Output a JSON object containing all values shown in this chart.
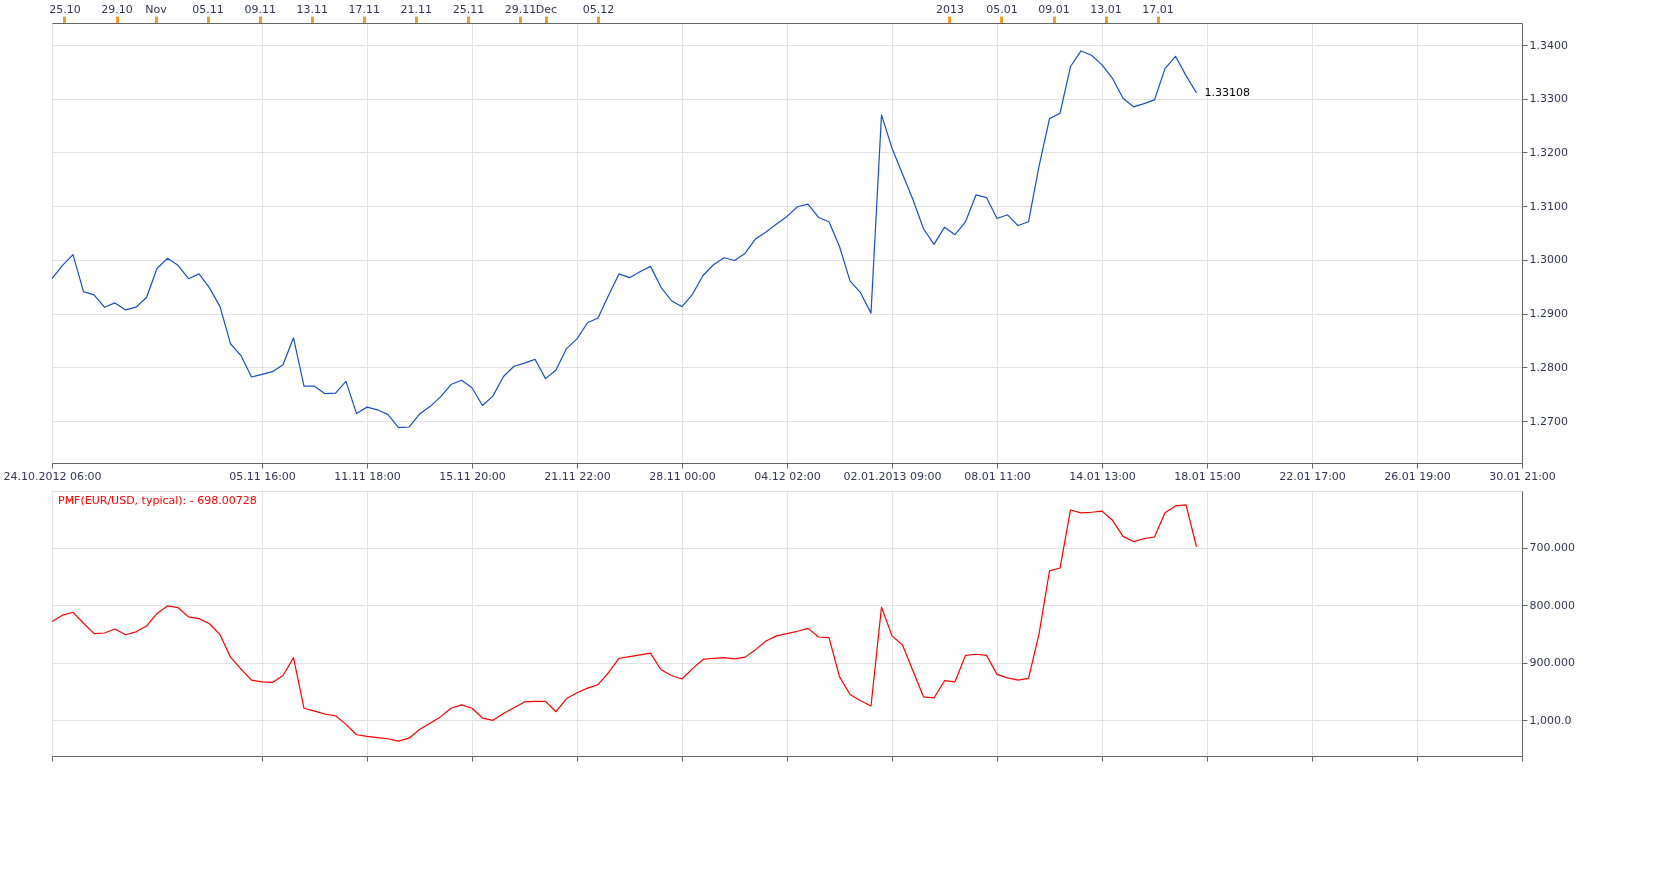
{
  "chart_data": [
    {
      "type": "line",
      "grid": true,
      "legend": false,
      "marker": "none",
      "line_style": "solid",
      "categories": [
        "24.10.2012 06:00",
        null,
        null,
        null,
        null,
        null,
        null,
        null,
        null,
        null,
        null,
        null,
        null,
        null,
        null,
        null,
        null,
        null,
        null,
        null,
        "05.11 16:00",
        null,
        null,
        null,
        null,
        null,
        null,
        null,
        null,
        null,
        "11.11 18:00",
        null,
        null,
        null,
        null,
        null,
        null,
        null,
        null,
        null,
        "15.11 20:00",
        null,
        null,
        null,
        null,
        null,
        null,
        null,
        null,
        null,
        "21.11 22:00",
        null,
        null,
        null,
        null,
        null,
        null,
        null,
        null,
        null,
        "28.11 00:00",
        null,
        null,
        null,
        null,
        null,
        null,
        null,
        null,
        null,
        "04.12 02:00",
        null,
        null,
        null,
        null,
        null,
        null,
        null,
        null,
        null,
        "02.01.2013 09:00",
        null,
        null,
        null,
        null,
        null,
        null,
        null,
        null,
        null,
        "08.01 11:00",
        null,
        null,
        null,
        null,
        null,
        null,
        null,
        null,
        null,
        "14.01 13:00",
        null,
        null,
        null,
        null,
        null,
        null,
        null,
        null,
        null,
        "18.01 15:00",
        null,
        null,
        null,
        null,
        null,
        null,
        null,
        null,
        null,
        "22.01 17:00",
        null,
        null,
        null,
        null,
        null,
        null,
        null,
        null,
        null,
        "26.01 19:00",
        null,
        null,
        null,
        null,
        null,
        null,
        null,
        null,
        null,
        "30.01 21:00"
      ],
      "x2lim": [
        "2012-10-24T01:00",
        "2013-02-14T00:00"
      ],
      "x2ticks": [
        {
          "value": "2012-10-25",
          "label": "25.10"
        },
        {
          "value": "2012-10-29",
          "label": "29.10"
        },
        {
          "value": "2012-11-01",
          "label": "Nov"
        },
        {
          "value": "2012-11-05",
          "label": "05.11"
        },
        {
          "value": "2012-11-09",
          "label": "09.11"
        },
        {
          "value": "2012-11-13",
          "label": "13.11"
        },
        {
          "value": "2012-11-17",
          "label": "17.11"
        },
        {
          "value": "2012-11-21",
          "label": "21.11"
        },
        {
          "value": "2012-11-25",
          "label": "25.11"
        },
        {
          "value": "2012-11-29",
          "label": "29.11"
        },
        {
          "value": "2012-12-01",
          "label": "Dec"
        },
        {
          "value": "2012-12-05",
          "label": "05.12"
        },
        {
          "value": "2013-01-01",
          "label": "2013"
        },
        {
          "value": "2013-01-05",
          "label": "05.01"
        },
        {
          "value": "2013-01-09",
          "label": "09.01"
        },
        {
          "value": "2013-01-13",
          "label": "13.01"
        },
        {
          "value": "2013-01-17",
          "label": "17.01"
        }
      ],
      "ylim": [
        1.2622,
        1.3441
      ],
      "yticks": [
        {
          "value": 1.27,
          "label": "1.2700"
        },
        {
          "value": 1.28,
          "label": "1.2800"
        },
        {
          "value": 1.29,
          "label": "1.2900"
        },
        {
          "value": 1.3,
          "label": "1.3000"
        },
        {
          "value": 1.31,
          "label": "1.3100"
        },
        {
          "value": 1.32,
          "label": "1.3200"
        },
        {
          "value": 1.33,
          "label": "1.3300"
        },
        {
          "value": 1.34,
          "label": "1.3400"
        }
      ],
      "annotations": [
        "1.33108"
      ],
      "series": [
        {
          "color": "#1a4fc4",
          "values": [
            1.2965,
            1.299,
            1.301,
            1.2941,
            1.2935,
            1.2912,
            1.292,
            1.2907,
            1.2912,
            1.293,
            1.2984,
            1.3003,
            1.299,
            1.2965,
            1.2974,
            1.2948,
            1.2913,
            1.2844,
            1.2822,
            1.2782,
            1.2787,
            1.2792,
            1.2805,
            1.2855,
            1.2765,
            1.2765,
            1.2751,
            1.2752,
            1.2774,
            1.2714,
            1.2726,
            1.2721,
            1.2712,
            1.2688,
            1.2689,
            1.2713,
            1.2727,
            1.2745,
            1.2768,
            1.2776,
            1.2762,
            1.2729,
            1.2747,
            1.2783,
            1.2802,
            1.2808,
            1.2815,
            1.2779,
            1.2795,
            1.2835,
            1.2853,
            1.2883,
            1.2892,
            1.2934,
            1.2974,
            1.2967,
            1.2978,
            1.2988,
            1.2949,
            1.2924,
            1.2913,
            1.2936,
            1.2971,
            1.2991,
            1.3004,
            1.2999,
            1.3012,
            1.3039,
            1.3052,
            1.3067,
            1.3081,
            1.3099,
            1.3104,
            1.3079,
            1.3071,
            1.3025,
            1.2961,
            1.2939,
            1.2901,
            1.327,
            1.3208,
            1.316,
            1.3112,
            1.3058,
            1.3029,
            1.3061,
            1.3047,
            1.3071,
            1.3121,
            1.3116,
            1.3077,
            1.3084,
            1.3064,
            1.3071,
            1.3174,
            1.3263,
            1.3273,
            1.336,
            1.3389,
            1.3381,
            1.3363,
            1.3338,
            1.3301,
            1.3285,
            1.3291,
            1.3298,
            1.3356,
            1.3379,
            1.3343,
            1.3311,
            null,
            null,
            null,
            null,
            null,
            null,
            null,
            null,
            null,
            null,
            null,
            null,
            null,
            null,
            null,
            null,
            null,
            null,
            null,
            null,
            null,
            null,
            null,
            null,
            null,
            null,
            null,
            null,
            null,
            null,
            null
          ]
        }
      ]
    },
    {
      "type": "line",
      "grid": true,
      "legend": false,
      "marker": "none",
      "line_style": "solid",
      "tick_labels": "y",
      "title": "PMF(EUR/USD, typical): - 698.00728",
      "categories": [
        null,
        null,
        null,
        null,
        null,
        null,
        null,
        null,
        null,
        null,
        null,
        null,
        null,
        null,
        null,
        null,
        null,
        null,
        null,
        null,
        null,
        null,
        null,
        null,
        null,
        null,
        null,
        null,
        null,
        null,
        null,
        null,
        null,
        null,
        null,
        null,
        null,
        null,
        null,
        null,
        null,
        null,
        null,
        null,
        null,
        null,
        null,
        null,
        null,
        null,
        null,
        null,
        null,
        null,
        null,
        null,
        null,
        null,
        null,
        null,
        null,
        null,
        null,
        null,
        null,
        null,
        null,
        null,
        null,
        null,
        null,
        null,
        null,
        null,
        null,
        null,
        null,
        null,
        null,
        null,
        null,
        null,
        null,
        null,
        null,
        null,
        null,
        null,
        null,
        null,
        null,
        null,
        null,
        null,
        null,
        null,
        null,
        null,
        null,
        null,
        null,
        null,
        null,
        null,
        null,
        null,
        null,
        null,
        null,
        null,
        null,
        null,
        null,
        null,
        null,
        null,
        null,
        null,
        null,
        null,
        null,
        null,
        null,
        null,
        null,
        null,
        null,
        null,
        null,
        null,
        null,
        null,
        null,
        null,
        null,
        null,
        null,
        null,
        null,
        null,
        null
      ],
      "ylim": [
        1062,
        601
      ],
      "yticks": [
        {
          "value": 700,
          "label": "700.000"
        },
        {
          "value": 800,
          "label": "800.000"
        },
        {
          "value": 900,
          "label": "900.000"
        },
        {
          "value": 1000,
          "label": "1,000.0"
        }
      ],
      "series": [
        {
          "color": "#ff0000",
          "values": [
            828,
            817,
            812,
            831,
            849,
            848,
            841,
            851,
            846,
            836,
            814,
            801,
            804,
            820,
            823,
            832,
            851,
            890,
            911,
            930,
            933,
            934,
            922,
            891,
            979,
            984,
            989,
            992,
            1007,
            1025,
            1028,
            1030,
            1032,
            1036,
            1031,
            1016,
            1005,
            994,
            979,
            973,
            979,
            996,
            1000,
            988,
            978,
            968,
            967,
            967,
            985,
            962,
            952,
            944,
            938,
            917,
            892,
            889,
            886,
            883,
            912,
            922,
            928,
            910,
            894,
            892,
            891,
            893,
            890,
            877,
            862,
            853,
            849,
            845,
            840,
            855,
            856,
            924,
            955,
            966,
            975,
            803,
            853,
            869,
            914,
            959,
            961,
            931,
            933,
            887,
            885,
            887,
            920,
            926,
            930,
            927,
            850,
            740,
            735,
            634,
            639,
            638,
            636,
            652,
            680,
            689,
            684,
            681,
            639,
            627,
            625,
            698,
            null,
            null,
            null,
            null,
            null,
            null,
            null,
            null,
            null,
            null,
            null,
            null,
            null,
            null,
            null,
            null,
            null,
            null,
            null,
            null,
            null,
            null,
            null,
            null,
            null,
            null,
            null,
            null,
            null,
            null,
            null
          ]
        }
      ]
    }
  ]
}
